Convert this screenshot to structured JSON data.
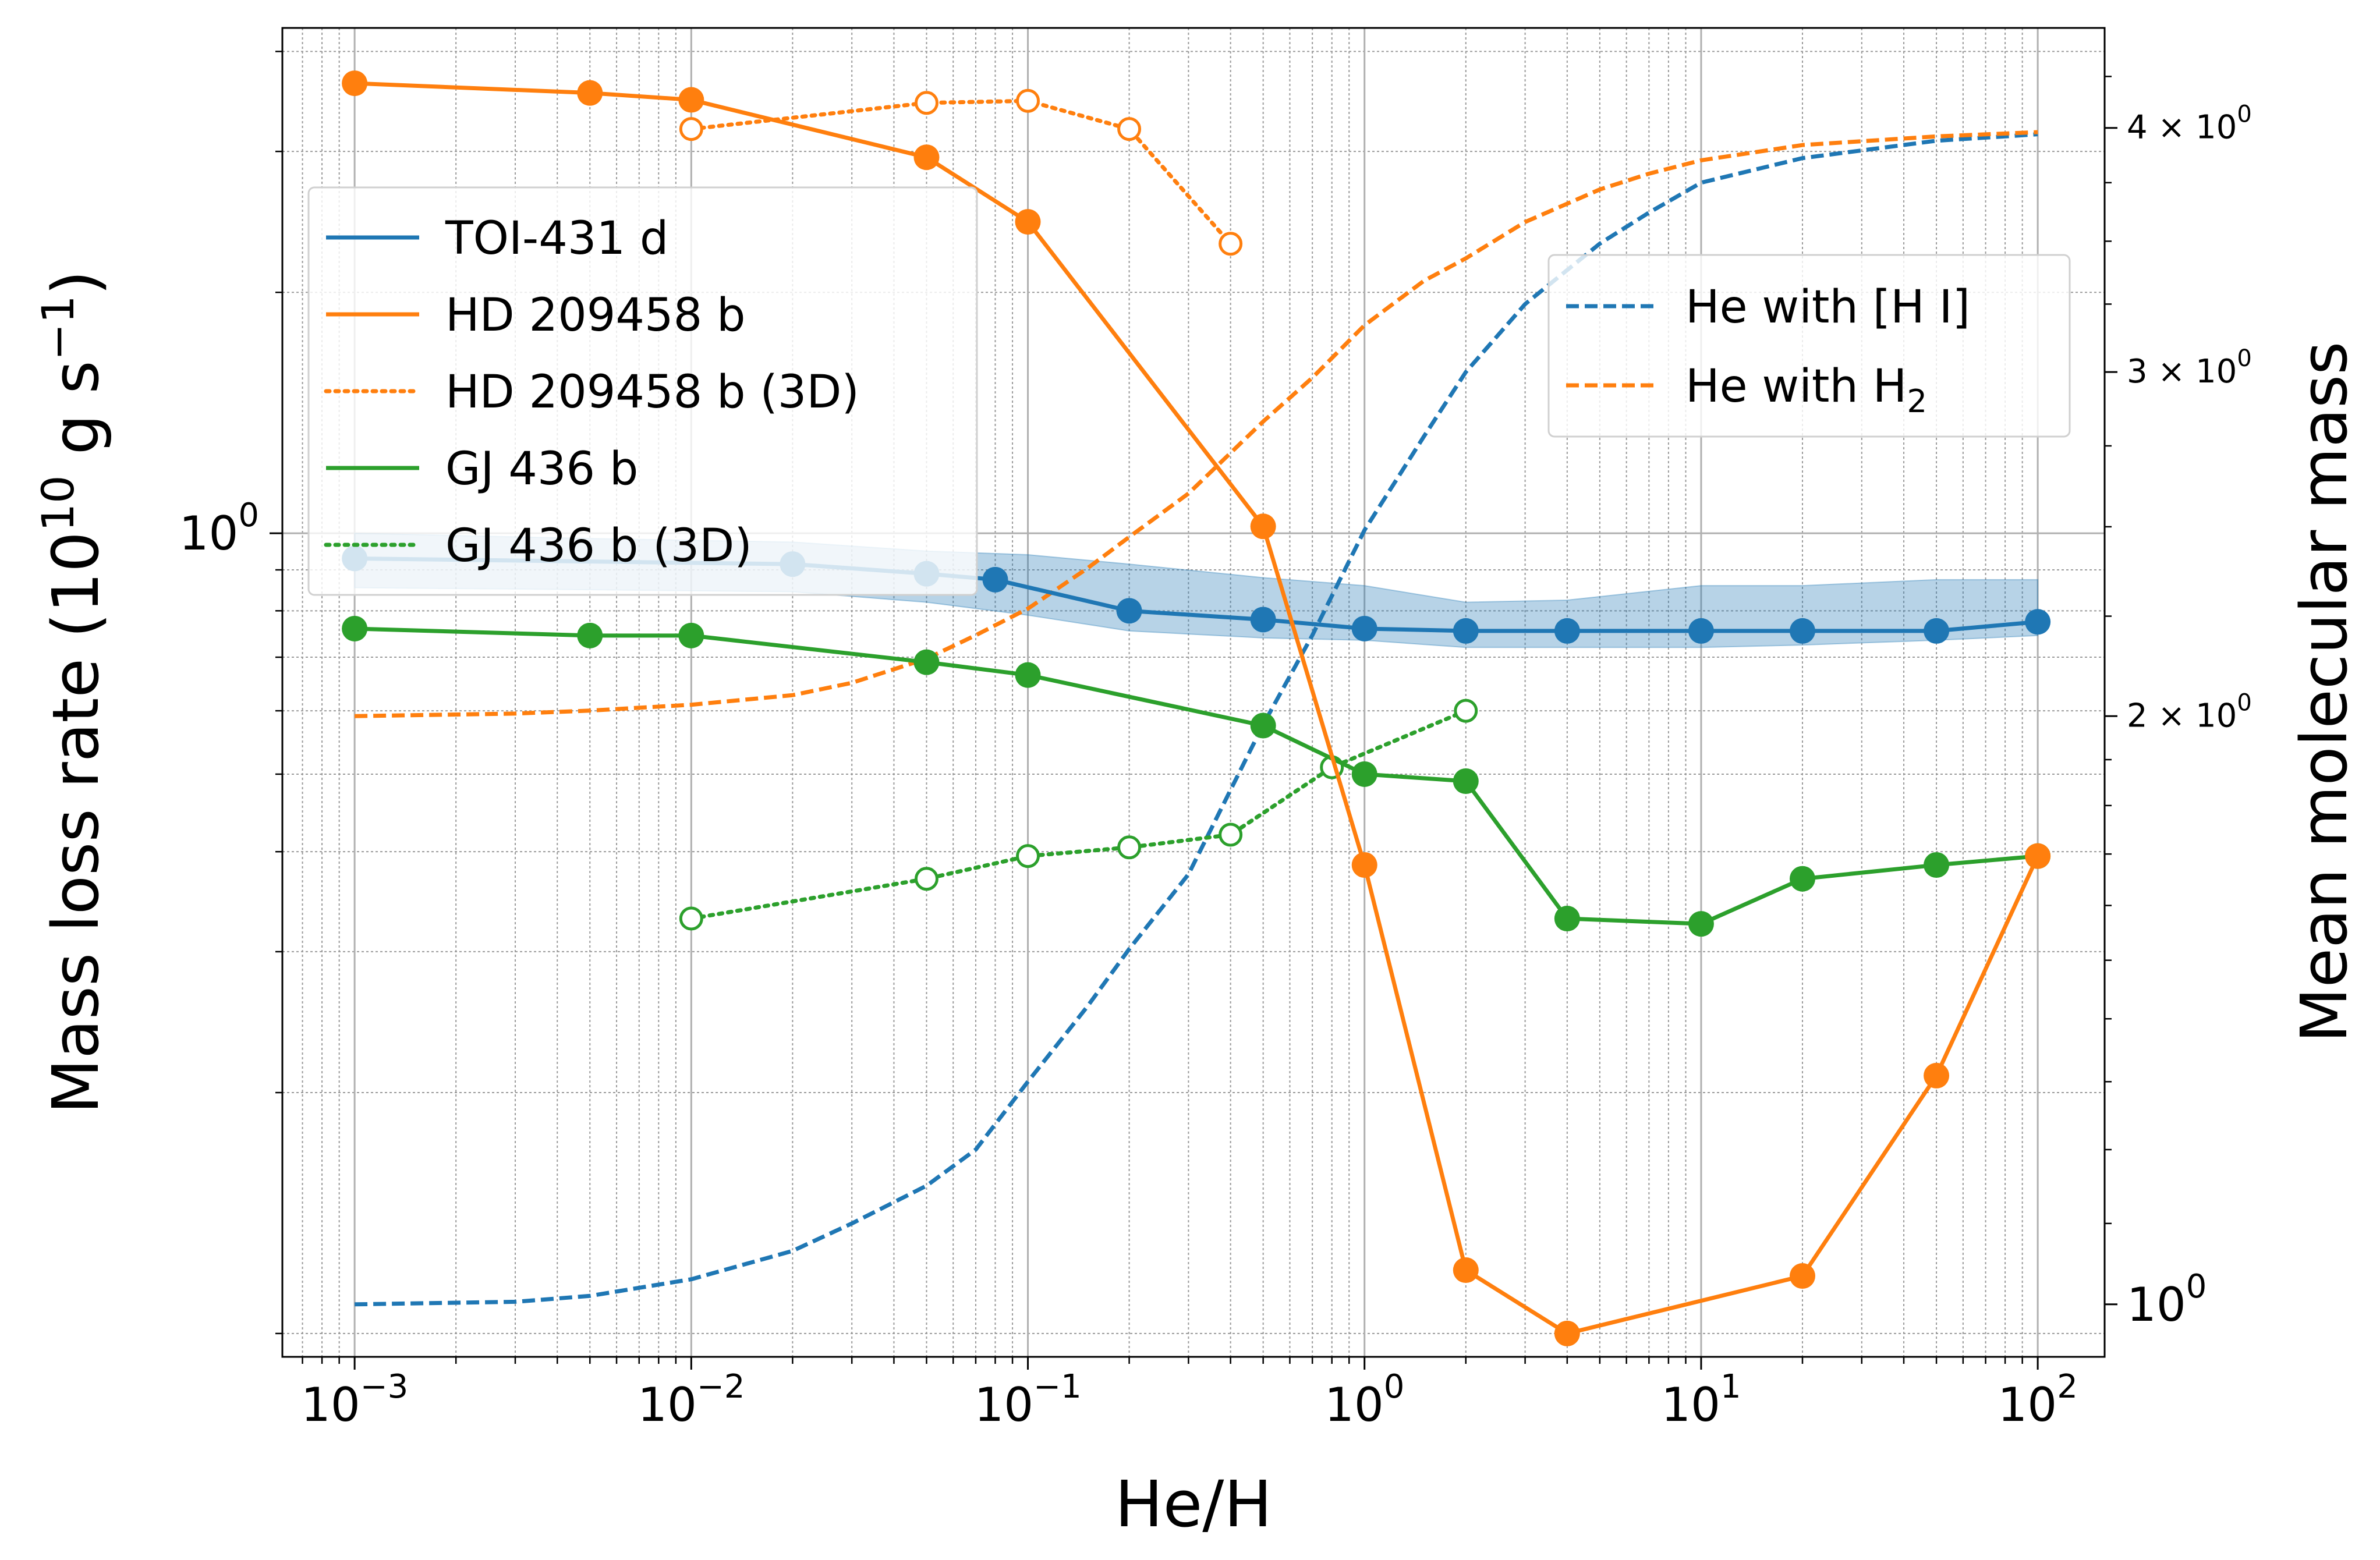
{
  "chart_data": {
    "type": "line",
    "xlabel": "He/H",
    "ylabel_left": "Mass loss rate (10",
    "ylabel_left_exp": "10",
    "ylabel_left_units": " g s",
    "ylabel_left_units_exp": "−1",
    "ylabel_right": "Mean molecular mass",
    "x_scale": "log",
    "y_left_scale": "log",
    "y_right_scale": "log",
    "xlim": [
      0.00061,
      158
    ],
    "ylim_left": [
      0.0935,
      4.28
    ],
    "ylim_right": [
      0.94,
      4.5
    ],
    "grid": true,
    "x_ticks": [
      {
        "value": 0.001,
        "base": "10",
        "exp": "−3"
      },
      {
        "value": 0.01,
        "base": "10",
        "exp": "−2"
      },
      {
        "value": 0.1,
        "base": "10",
        "exp": "−1"
      },
      {
        "value": 1,
        "base": "10",
        "exp": "0"
      },
      {
        "value": 10,
        "base": "10",
        "exp": "1"
      },
      {
        "value": 100,
        "base": "10",
        "exp": "2"
      }
    ],
    "y_left_ticks": [
      {
        "value": 1,
        "base": "10",
        "exp": "0"
      }
    ],
    "y_right_ticks": [
      {
        "value": 4,
        "mant": "4 × 10",
        "exp": "0"
      },
      {
        "value": 3,
        "mant": "3 × 10",
        "exp": "0"
      },
      {
        "value": 2,
        "mant": "2 × 10",
        "exp": "0"
      },
      {
        "value": 1,
        "mant": "10",
        "exp": "0"
      }
    ],
    "band": {
      "series": "TOI-431 d",
      "color": "#1f77b4",
      "x": [
        0.001,
        0.005,
        0.02,
        0.05,
        0.1,
        0.2,
        0.5,
        1,
        2,
        4,
        10,
        20,
        50,
        100
      ],
      "upper": [
        1.0,
        0.985,
        0.975,
        0.95,
        0.94,
        0.915,
        0.88,
        0.86,
        0.82,
        0.825,
        0.86,
        0.86,
        0.875,
        0.875
      ],
      "lower": [
        0.855,
        0.85,
        0.845,
        0.82,
        0.79,
        0.755,
        0.74,
        0.735,
        0.72,
        0.72,
        0.72,
        0.725,
        0.735,
        0.745
      ]
    },
    "series": [
      {
        "name": "TOI-431 d",
        "axis": "left",
        "color": "#1f77b4",
        "style": "solid",
        "marker": "filled",
        "x": [
          0.001,
          0.02,
          0.05,
          0.08,
          0.2,
          0.5,
          1,
          2,
          4,
          10,
          20,
          50,
          100
        ],
        "y": [
          0.93,
          0.915,
          0.89,
          0.875,
          0.8,
          0.78,
          0.76,
          0.755,
          0.755,
          0.755,
          0.755,
          0.755,
          0.775
        ]
      },
      {
        "name": "HD 209458 b",
        "axis": "left",
        "color": "#ff7f0e",
        "style": "solid",
        "marker": "filled",
        "x": [
          0.001,
          0.005,
          0.01,
          0.05,
          0.1,
          0.5,
          1,
          2,
          4,
          20,
          50,
          100
        ],
        "y": [
          3.65,
          3.55,
          3.48,
          2.95,
          2.45,
          1.02,
          0.385,
          0.12,
          0.1,
          0.118,
          0.21,
          0.395
        ]
      },
      {
        "name": "HD 209458 b (3D)",
        "axis": "left",
        "color": "#ff7f0e",
        "style": "dotted",
        "marker": "open",
        "x": [
          0.01,
          0.05,
          0.1,
          0.2,
          0.4
        ],
        "y": [
          3.2,
          3.45,
          3.47,
          3.2,
          2.3
        ]
      },
      {
        "name": "GJ 436 b",
        "axis": "left",
        "color": "#2ca02c",
        "style": "solid",
        "marker": "filled",
        "x": [
          0.001,
          0.005,
          0.01,
          0.05,
          0.1,
          0.5,
          1,
          2,
          4,
          10,
          20,
          50,
          100
        ],
        "y": [
          0.76,
          0.745,
          0.745,
          0.69,
          0.665,
          0.575,
          0.5,
          0.49,
          0.33,
          0.325,
          0.37,
          0.385,
          0.395
        ]
      },
      {
        "name": "GJ 436 b (3D)",
        "axis": "left",
        "color": "#2ca02c",
        "style": "dotted",
        "marker": "open",
        "x": [
          0.01,
          0.05,
          0.1,
          0.2,
          0.4,
          0.8,
          2
        ],
        "y": [
          0.33,
          0.37,
          0.395,
          0.405,
          0.42,
          0.51,
          0.6
        ]
      },
      {
        "name": "He with [H I]",
        "axis": "right",
        "color": "#1f77b4",
        "style": "dashed",
        "marker": "none",
        "x": [
          0.001,
          0.003,
          0.005,
          0.01,
          0.02,
          0.03,
          0.05,
          0.07,
          0.1,
          0.15,
          0.2,
          0.3,
          0.5,
          0.7,
          1,
          1.5,
          2,
          3,
          5,
          7,
          10,
          20,
          50,
          100
        ],
        "y": [
          1.0,
          1.003,
          1.01,
          1.03,
          1.065,
          1.1,
          1.15,
          1.2,
          1.3,
          1.42,
          1.52,
          1.66,
          1.98,
          2.2,
          2.49,
          2.78,
          3.0,
          3.25,
          3.49,
          3.62,
          3.75,
          3.86,
          3.94,
          3.97
        ]
      },
      {
        "name": "He with H₂",
        "axis": "right",
        "color": "#ff7f0e",
        "style": "dashed",
        "marker": "none",
        "x": [
          0.001,
          0.003,
          0.005,
          0.01,
          0.02,
          0.03,
          0.05,
          0.07,
          0.1,
          0.15,
          0.2,
          0.3,
          0.5,
          0.7,
          1,
          1.5,
          2,
          3,
          5,
          7,
          10,
          20,
          50,
          100
        ],
        "y": [
          2.0,
          2.006,
          2.013,
          2.027,
          2.05,
          2.08,
          2.14,
          2.2,
          2.27,
          2.38,
          2.47,
          2.6,
          2.83,
          2.98,
          3.17,
          3.34,
          3.43,
          3.58,
          3.72,
          3.79,
          3.85,
          3.92,
          3.96,
          3.98
        ]
      }
    ],
    "legend_left": {
      "placement": "upper-left",
      "entries": [
        {
          "label": "TOI-431 d",
          "color": "#1f77b4",
          "style": "solid"
        },
        {
          "label": "HD 209458 b",
          "color": "#ff7f0e",
          "style": "solid"
        },
        {
          "label": "HD 209458 b (3D)",
          "color": "#ff7f0e",
          "style": "dotted"
        },
        {
          "label": "GJ 436 b",
          "color": "#2ca02c",
          "style": "solid"
        },
        {
          "label": "GJ 436 b (3D)",
          "color": "#2ca02c",
          "style": "dotted"
        }
      ]
    },
    "legend_right": {
      "placement": "upper-right",
      "entries": [
        {
          "label": "He with [H I]",
          "color": "#1f77b4",
          "style": "dashed"
        },
        {
          "label": "He with H",
          "sub": "2",
          "color": "#ff7f0e",
          "style": "dashed"
        }
      ]
    }
  }
}
